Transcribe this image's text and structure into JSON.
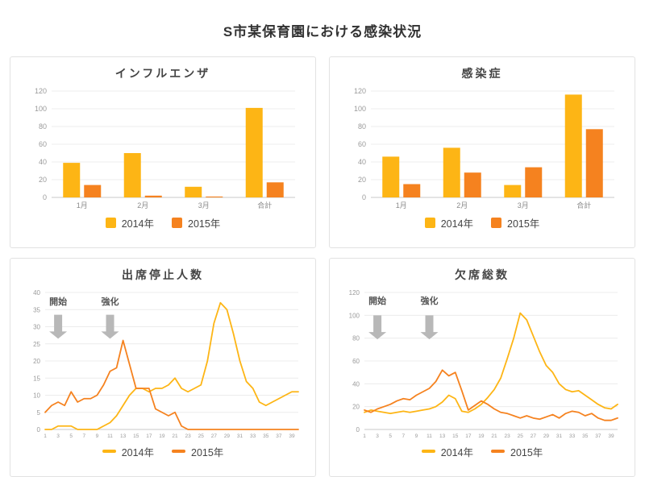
{
  "page": {
    "title": "S市某保育園における感染状況"
  },
  "colors": {
    "series_2014": "#FDB515",
    "series_2015": "#F5821F",
    "grid": "#ECECEC",
    "axis": "#C9C9C9",
    "arrow": "#B8B8B8"
  },
  "chart_data": [
    {
      "id": "influenza",
      "type": "bar",
      "title": "インフルエンザ",
      "categories": [
        "1月",
        "2月",
        "3月",
        "合計"
      ],
      "series": [
        {
          "name": "2014年",
          "color": "#FDB515",
          "values": [
            39,
            50,
            12,
            101
          ]
        },
        {
          "name": "2015年",
          "color": "#F5821F",
          "values": [
            14,
            2,
            1,
            17
          ]
        }
      ],
      "ylim": [
        0,
        120
      ],
      "ystep": 20,
      "legend_position": "bottom",
      "grid": true
    },
    {
      "id": "kansensho",
      "type": "bar",
      "title": "感染症",
      "categories": [
        "1月",
        "2月",
        "3月",
        "合計"
      ],
      "series": [
        {
          "name": "2014年",
          "color": "#FDB515",
          "values": [
            46,
            56,
            14,
            116
          ]
        },
        {
          "name": "2015年",
          "color": "#F5821F",
          "values": [
            15,
            28,
            34,
            77
          ]
        }
      ],
      "ylim": [
        0,
        120
      ],
      "ystep": 20,
      "legend_position": "bottom",
      "grid": true
    },
    {
      "id": "shusseki-teishi",
      "type": "line",
      "title": "出席停止人数",
      "x_tick_labels": [
        1,
        3,
        5,
        7,
        9,
        11,
        13,
        15,
        17,
        19,
        21,
        23,
        25,
        27,
        29,
        31,
        33,
        35,
        37,
        39
      ],
      "series": [
        {
          "name": "2014年",
          "color": "#FDB515",
          "values": [
            0,
            0,
            1,
            1,
            1,
            0,
            0,
            0,
            0,
            1,
            2,
            4,
            7,
            10,
            12,
            12,
            11,
            12,
            12,
            13,
            15,
            12,
            11,
            12,
            13,
            20,
            31,
            37,
            35,
            28,
            20,
            14,
            12,
            8,
            7,
            8,
            9,
            10,
            11,
            11
          ]
        },
        {
          "name": "2015年",
          "color": "#F5821F",
          "values": [
            5,
            7,
            8,
            7,
            11,
            8,
            9,
            9,
            10,
            13,
            17,
            18,
            26,
            19,
            12,
            12,
            12,
            6,
            5,
            4,
            5,
            1,
            0,
            0,
            0,
            0,
            0,
            0,
            0,
            0,
            0,
            0,
            0,
            0,
            0,
            0,
            0,
            0,
            0,
            0
          ]
        }
      ],
      "ylim": [
        0,
        40
      ],
      "ystep": 5,
      "legend_position": "bottom",
      "grid": true,
      "annotations": [
        {
          "label": "開始",
          "x": 3,
          "label_y": 36.5,
          "arrow_top": 33.5,
          "arrow_bottom": 26.5
        },
        {
          "label": "強化",
          "x": 11,
          "label_y": 36.5,
          "arrow_top": 33.5,
          "arrow_bottom": 26.5
        }
      ]
    },
    {
      "id": "kesseki-sosu",
      "type": "line",
      "title": "欠席総数",
      "x_tick_labels": [
        1,
        3,
        5,
        7,
        9,
        11,
        13,
        15,
        17,
        19,
        21,
        23,
        25,
        27,
        29,
        31,
        33,
        35,
        37,
        39
      ],
      "series": [
        {
          "name": "2014年",
          "color": "#FDB515",
          "values": [
            15,
            17,
            16,
            15,
            14,
            15,
            16,
            15,
            16,
            17,
            18,
            20,
            24,
            30,
            27,
            16,
            15,
            18,
            22,
            28,
            35,
            45,
            62,
            80,
            102,
            96,
            82,
            68,
            56,
            50,
            40,
            35,
            33,
            34,
            30,
            26,
            22,
            19,
            18,
            22
          ]
        },
        {
          "name": "2015年",
          "color": "#F5821F",
          "values": [
            17,
            15,
            18,
            20,
            22,
            25,
            27,
            26,
            30,
            33,
            36,
            42,
            52,
            47,
            50,
            34,
            17,
            21,
            25,
            22,
            18,
            15,
            14,
            12,
            10,
            12,
            10,
            9,
            11,
            13,
            10,
            14,
            16,
            15,
            12,
            14,
            10,
            8,
            8,
            10
          ]
        }
      ],
      "ylim": [
        0,
        120
      ],
      "ystep": 20,
      "legend_position": "bottom",
      "grid": true,
      "annotations": [
        {
          "label": "開始",
          "x": 3,
          "label_y": 110,
          "arrow_top": 100,
          "arrow_bottom": 79
        },
        {
          "label": "強化",
          "x": 11,
          "label_y": 110,
          "arrow_top": 100,
          "arrow_bottom": 79
        }
      ]
    }
  ]
}
